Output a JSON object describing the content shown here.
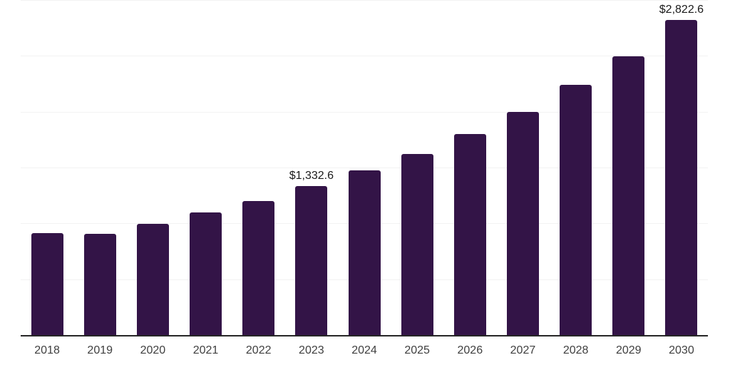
{
  "chart_data": {
    "type": "bar",
    "title": "",
    "xlabel": "",
    "ylabel": "",
    "categories": [
      "2018",
      "2019",
      "2020",
      "2021",
      "2022",
      "2023",
      "2024",
      "2025",
      "2026",
      "2027",
      "2028",
      "2029",
      "2030"
    ],
    "values": [
      916,
      904,
      993,
      1096,
      1199,
      1332.6,
      1473,
      1620,
      1799,
      1997,
      2240,
      2497,
      2822.6
    ],
    "value_labels": [
      {
        "category": "2023",
        "index": 5,
        "text": "$1,332.6"
      },
      {
        "category": "2030",
        "index": 12,
        "text": "$2,822.6"
      }
    ],
    "ylim": [
      0,
      3000
    ],
    "gridline_step": 500,
    "grid": "horizontal-only",
    "legend": "none",
    "colors": {
      "bar": "#331447",
      "axis_line": "#262626",
      "gridline": "#f2f2f2",
      "tick_label": "#404040",
      "value_label": "#1a1a1a",
      "background": "#ffffff"
    }
  }
}
